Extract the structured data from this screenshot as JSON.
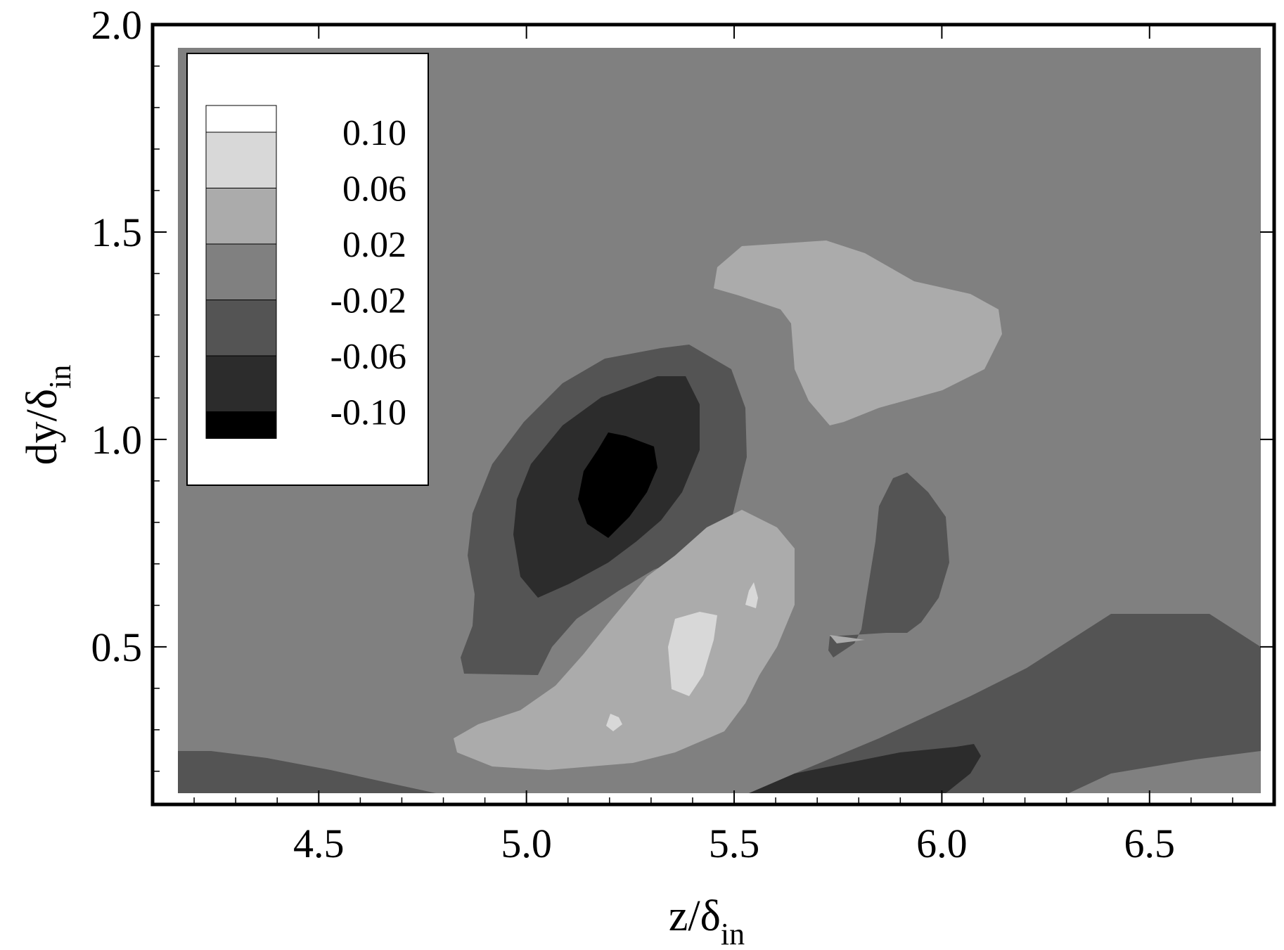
{
  "chart_data": {
    "type": "contour",
    "xlabel": {
      "main": "z/δ",
      "sub": "in"
    },
    "ylabel": {
      "main": "dy/δ",
      "sub": "in"
    },
    "xlim": [
      4.1,
      6.8
    ],
    "ylim": [
      0.12,
      2.0
    ],
    "x_ticks": [
      "4.5",
      "5.0",
      "5.5",
      "6.0",
      "6.5"
    ],
    "x_tick_values": [
      4.5,
      5.0,
      5.5,
      6.0,
      6.5
    ],
    "y_ticks": [
      "0.5",
      "1.0",
      "1.5",
      "2.0"
    ],
    "y_tick_values": [
      0.5,
      1.0,
      1.5,
      2.0
    ],
    "legend": {
      "placement": "top-left",
      "levels": [
        "0.10",
        "0.06",
        "0.02",
        "-0.02",
        "-0.06",
        "-0.10"
      ],
      "colors": [
        "#ffffff",
        "#d8d8d8",
        "#ababab",
        "#808080",
        "#545454",
        "#2c2c2c",
        "#000000"
      ]
    },
    "background_level_color": "#808080"
  }
}
